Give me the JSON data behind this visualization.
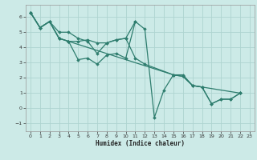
{
  "xlabel": "Humidex (Indice chaleur)",
  "background_color": "#cceae7",
  "grid_color": "#aed4d0",
  "line_color": "#2e7d6e",
  "xlim": [
    -0.5,
    23.5
  ],
  "ylim": [
    -1.5,
    6.8
  ],
  "yticks": [
    -1,
    0,
    1,
    2,
    3,
    4,
    5,
    6
  ],
  "xticks": [
    0,
    1,
    2,
    3,
    4,
    5,
    6,
    7,
    8,
    9,
    10,
    11,
    12,
    13,
    14,
    15,
    16,
    17,
    18,
    19,
    20,
    21,
    22,
    23
  ],
  "lines": [
    {
      "x": [
        0,
        1,
        2,
        3,
        4,
        5,
        6,
        7,
        8,
        9,
        10,
        11,
        12,
        13,
        14,
        15,
        16,
        17,
        18,
        19,
        20,
        21,
        22
      ],
      "y": [
        6.3,
        5.3,
        5.7,
        4.6,
        4.4,
        3.2,
        3.3,
        2.9,
        3.5,
        3.6,
        3.3,
        5.7,
        5.2,
        -0.6,
        1.2,
        2.2,
        2.2,
        1.5,
        1.4,
        0.3,
        0.6,
        0.6,
        1.0
      ]
    },
    {
      "x": [
        0,
        1,
        2,
        3,
        4,
        5,
        6,
        7,
        8,
        9,
        10,
        11
      ],
      "y": [
        6.3,
        5.3,
        5.7,
        5.0,
        5.0,
        4.6,
        4.4,
        3.6,
        4.3,
        4.5,
        4.6,
        5.7
      ]
    },
    {
      "x": [
        0,
        1,
        2,
        3,
        4,
        15,
        16,
        17,
        18,
        19,
        20,
        21,
        22
      ],
      "y": [
        6.3,
        5.3,
        5.7,
        4.6,
        4.4,
        2.2,
        2.1,
        1.5,
        1.4,
        0.3,
        0.6,
        0.6,
        1.0
      ]
    },
    {
      "x": [
        0,
        1,
        2,
        3,
        4,
        5,
        6,
        7,
        8,
        9,
        10,
        11,
        12,
        15,
        16,
        17,
        18,
        22
      ],
      "y": [
        6.3,
        5.3,
        5.7,
        4.6,
        4.4,
        4.4,
        4.5,
        4.3,
        4.3,
        4.5,
        4.6,
        3.3,
        2.9,
        2.2,
        2.1,
        1.5,
        1.4,
        1.0
      ]
    }
  ]
}
